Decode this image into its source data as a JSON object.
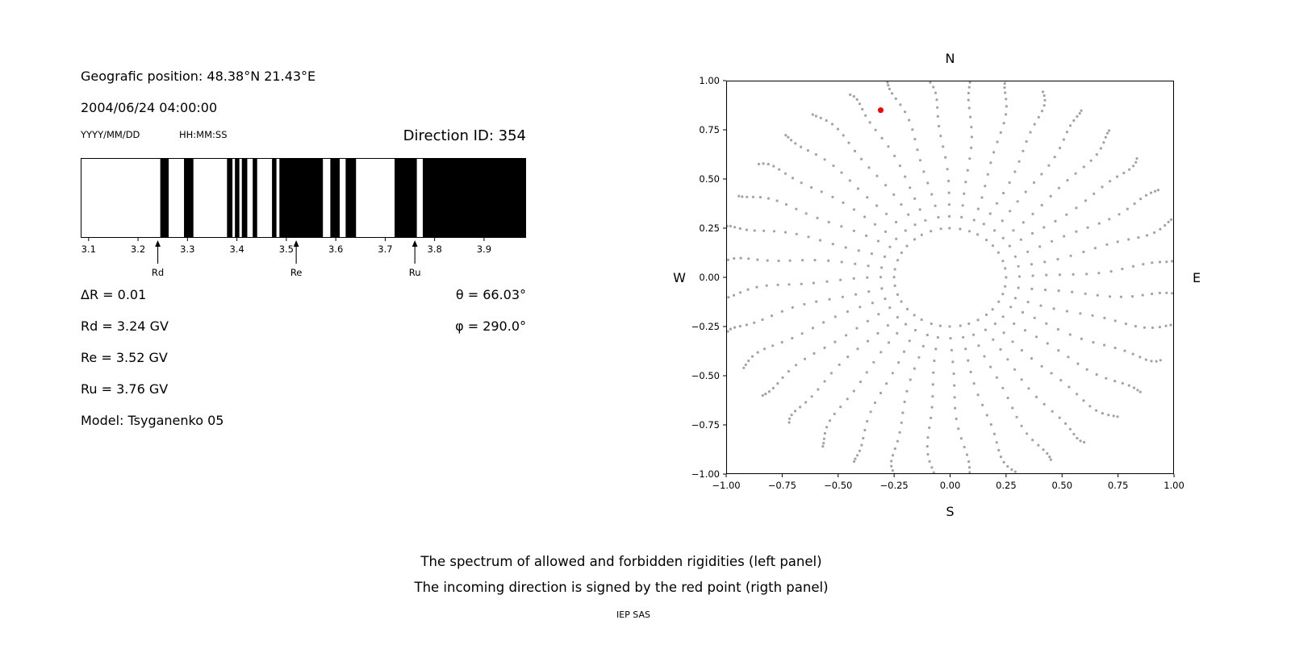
{
  "left_panel": {
    "geo_position": "Geografic position: 48.38°N 21.43°E",
    "datetime": "2004/06/24 04:00:00",
    "date_format_hint": "YYYY/MM/DD",
    "time_format_hint": "HH:MM:SS",
    "direction_id": "Direction ID: 354",
    "params": {
      "delta_r": "ΔR = 0.01",
      "rd": "Rd = 3.24 GV",
      "re": "Re = 3.52 GV",
      "ru": "Ru = 3.76 GV",
      "model": "Model: Tsyganenko 05",
      "theta": "θ = 66.03°",
      "phi": "φ = 290.0°"
    }
  },
  "caption": {
    "line1": "The spectrum of allowed and forbidden rigidities (left panel)",
    "line2": "The incoming direction is signed by the red point (rigth panel)",
    "credit": "IEP SAS"
  },
  "chart_data": [
    {
      "type": "bar",
      "name": "rigidity-spectrum",
      "description": "Spectrum of allowed (black) and forbidden (white) rigidities",
      "xlim": [
        3.084,
        3.985
      ],
      "xticks": [
        "3.1",
        "3.2",
        "3.3",
        "3.4",
        "3.5",
        "3.6",
        "3.7",
        "3.8",
        "3.9"
      ],
      "xtick_values": [
        3.1,
        3.2,
        3.3,
        3.4,
        3.5,
        3.6,
        3.7,
        3.8,
        3.9
      ],
      "allowed_bands_gv": [
        [
          3.245,
          3.262
        ],
        [
          3.293,
          3.312
        ],
        [
          3.38,
          3.391
        ],
        [
          3.396,
          3.405
        ],
        [
          3.41,
          3.421
        ],
        [
          3.432,
          3.441
        ],
        [
          3.471,
          3.48
        ],
        [
          3.486,
          3.574
        ],
        [
          3.589,
          3.608
        ],
        [
          3.62,
          3.641
        ],
        [
          3.719,
          3.764
        ],
        [
          3.776,
          3.985
        ]
      ],
      "cutoff_markers": [
        {
          "label": "Rd",
          "value_gv": 3.24
        },
        {
          "label": "Re",
          "value_gv": 3.52
        },
        {
          "label": "Ru",
          "value_gv": 3.76
        }
      ],
      "bar_color": "#000000"
    },
    {
      "type": "scatter",
      "name": "incoming-direction-map",
      "description": "Asymptotic direction dot map; incoming direction marked by red point",
      "xlim": [
        -1,
        1
      ],
      "ylim": [
        -1,
        1
      ],
      "xticks": [
        "−1.00",
        "−0.75",
        "−0.50",
        "−0.25",
        "0.00",
        "0.25",
        "0.50",
        "0.75",
        "1.00"
      ],
      "yticks": [
        "1.00",
        "0.75",
        "0.50",
        "0.25",
        "0.00",
        "−0.25",
        "−0.50",
        "−0.75",
        "−1.00"
      ],
      "xtick_values": [
        -1,
        -0.75,
        -0.5,
        -0.25,
        0,
        0.25,
        0.5,
        0.75,
        1
      ],
      "ytick_values": [
        1,
        0.75,
        0.5,
        0.25,
        0,
        -0.25,
        -0.5,
        -0.75,
        -1
      ],
      "compass_labels": {
        "top": "N",
        "bottom": "S",
        "left": "W",
        "right": "E"
      },
      "spokes": {
        "count": 36,
        "angle_step_deg": 10,
        "radii": [
          0.25,
          0.31,
          0.37,
          0.43,
          0.49,
          0.55,
          0.61,
          0.665,
          0.72,
          0.77,
          0.82,
          0.865,
          0.905,
          0.94,
          0.97,
          0.995,
          1.015,
          1.03
        ],
        "curl_deg_per_step": 0.35,
        "jitter_deg": 0.6,
        "dot_color": "#9a9a9a",
        "dot_radius_px": 1.6
      },
      "red_point": {
        "x": -0.31,
        "y": 0.85,
        "color": "#ff0000",
        "radius_px": 3.5
      }
    }
  ]
}
